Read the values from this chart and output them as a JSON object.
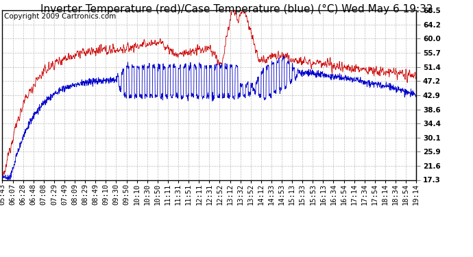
{
  "title": "Inverter Temperature (red)/Case Temperature (blue) (°C) Wed May 6 19:32",
  "copyright": "Copyright 2009 Cartronics.com",
  "yticks": [
    17.3,
    21.6,
    25.9,
    30.1,
    34.4,
    38.6,
    42.9,
    47.2,
    51.4,
    55.7,
    60.0,
    64.2,
    68.5
  ],
  "ylim": [
    17.3,
    68.5
  ],
  "xtick_labels": [
    "05:43",
    "06:07",
    "06:28",
    "06:48",
    "07:08",
    "07:29",
    "07:49",
    "08:09",
    "08:29",
    "08:49",
    "09:10",
    "09:30",
    "09:50",
    "10:10",
    "10:30",
    "10:50",
    "11:11",
    "11:31",
    "11:51",
    "12:11",
    "12:31",
    "12:52",
    "13:12",
    "13:32",
    "13:52",
    "14:12",
    "14:33",
    "14:53",
    "15:13",
    "15:33",
    "15:53",
    "16:13",
    "16:34",
    "16:54",
    "17:14",
    "17:34",
    "17:54",
    "18:14",
    "18:34",
    "18:54",
    "19:14"
  ],
  "background_color": "#ffffff",
  "plot_bg_color": "#ffffff",
  "grid_color": "#bbbbbb",
  "red_color": "#cc0000",
  "blue_color": "#0000cc",
  "title_fontsize": 11,
  "tick_fontsize": 7.5,
  "copyright_fontsize": 7.5
}
